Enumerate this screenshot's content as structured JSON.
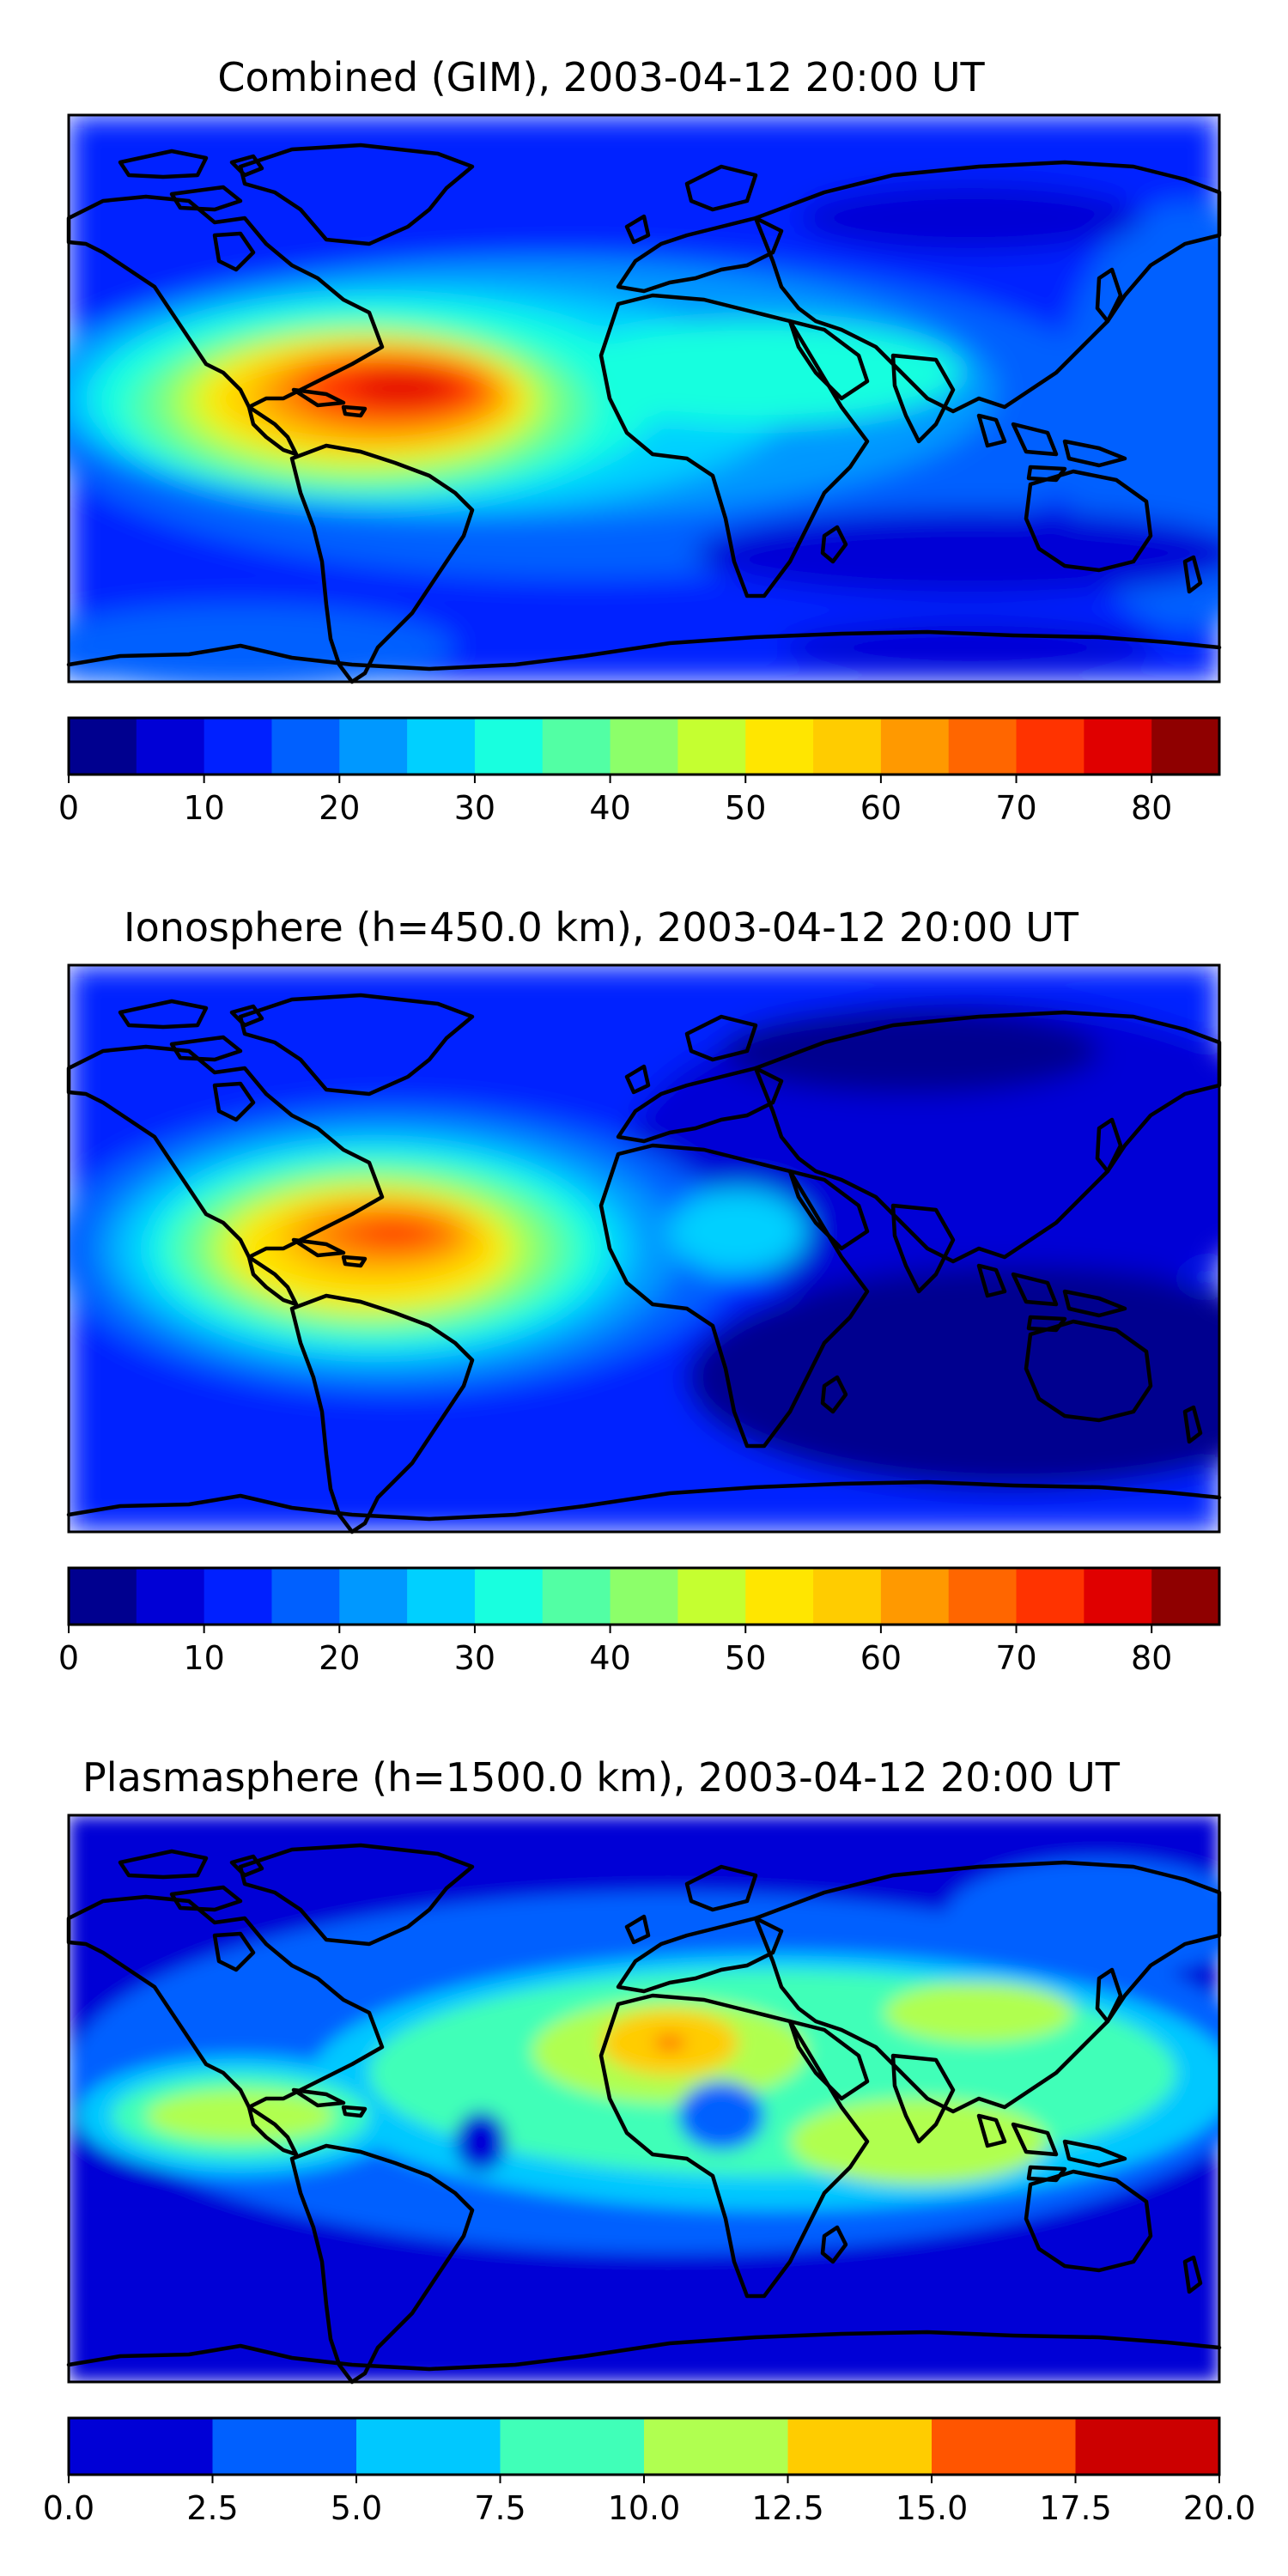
{
  "figure": {
    "panels": [
      {
        "id": "combined",
        "title": "Combined (GIM), 2003-04-12 20:00 UT",
        "colorbar": {
          "ticks": [
            "0",
            "10",
            "20",
            "30",
            "40",
            "50",
            "60",
            "70",
            "80"
          ],
          "levels": [
            0,
            5,
            10,
            15,
            20,
            25,
            30,
            35,
            40,
            45,
            50,
            55,
            60,
            65,
            70,
            75,
            80,
            85
          ],
          "colors": [
            "#00008f",
            "#0000d6",
            "#0020ff",
            "#0060ff",
            "#0098ff",
            "#00d0ff",
            "#18ffdf",
            "#52ffa4",
            "#8cff6a",
            "#c5ff30",
            "#ffe600",
            "#ffcc00",
            "#ff9900",
            "#ff6600",
            "#ff3300",
            "#e00000",
            "#8f0000"
          ]
        }
      },
      {
        "id": "ionosphere",
        "title": "Ionosphere  (h=450.0 km), 2003-04-12 20:00 UT",
        "colorbar": {
          "ticks": [
            "0",
            "10",
            "20",
            "30",
            "40",
            "50",
            "60",
            "70",
            "80"
          ],
          "levels": [
            0,
            5,
            10,
            15,
            20,
            25,
            30,
            35,
            40,
            45,
            50,
            55,
            60,
            65,
            70,
            75,
            80,
            85
          ],
          "colors": [
            "#00008f",
            "#0000d6",
            "#0020ff",
            "#0060ff",
            "#0098ff",
            "#00d0ff",
            "#18ffdf",
            "#52ffa4",
            "#8cff6a",
            "#c5ff30",
            "#ffe600",
            "#ffcc00",
            "#ff9900",
            "#ff6600",
            "#ff3300",
            "#e00000",
            "#8f0000"
          ]
        }
      },
      {
        "id": "plasmasphere",
        "title": "Plasmasphere (h=1500.0 km), 2003-04-12 20:00 UT",
        "colorbar": {
          "ticks": [
            "0.0",
            "2.5",
            "5.0",
            "7.5",
            "10.0",
            "12.5",
            "15.0",
            "17.5",
            "20.0"
          ],
          "levels": [
            0,
            2.5,
            5,
            7.5,
            10,
            12.5,
            15,
            17.5,
            20
          ],
          "colors": [
            "#0000d6",
            "#0060ff",
            "#00c8ff",
            "#40ffb8",
            "#b0ff50",
            "#ffcc00",
            "#ff5500",
            "#cc0000"
          ]
        }
      }
    ]
  }
}
